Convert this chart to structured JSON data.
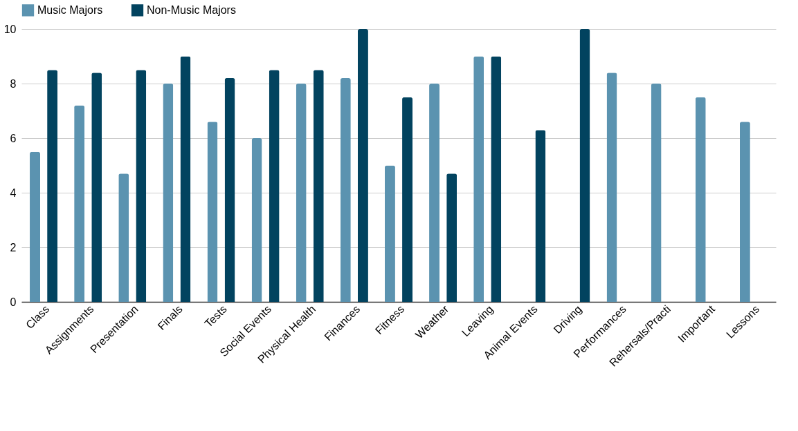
{
  "chart_data": {
    "type": "bar",
    "categories": [
      "Class",
      "Assignments",
      "Presentation",
      "Finals",
      "Tests",
      "Social Events",
      "Physical Health",
      "Finances",
      "Fitness",
      "Weather",
      "Leaving",
      "Animal Events",
      "Driving",
      "Performances",
      "Rehersals/Practi",
      "Important",
      "Lessons"
    ],
    "series": [
      {
        "name": "Music Majors",
        "color": "#5b93b0",
        "values": [
          5.5,
          7.2,
          4.7,
          8,
          6.6,
          6,
          8,
          8.2,
          5,
          8,
          9,
          null,
          null,
          8.4,
          8,
          7.5,
          6.6
        ]
      },
      {
        "name": "Non-Music Majors",
        "color": "#02435f",
        "values": [
          8.5,
          8.4,
          8.5,
          9,
          8.2,
          8.5,
          8.5,
          10,
          7.5,
          4.7,
          9,
          6.3,
          10,
          null,
          null,
          null,
          null
        ]
      }
    ],
    "ylim": [
      0,
      10
    ],
    "yticks": [
      0,
      2,
      4,
      6,
      8,
      10
    ],
    "grid": "y",
    "legend": "top"
  }
}
